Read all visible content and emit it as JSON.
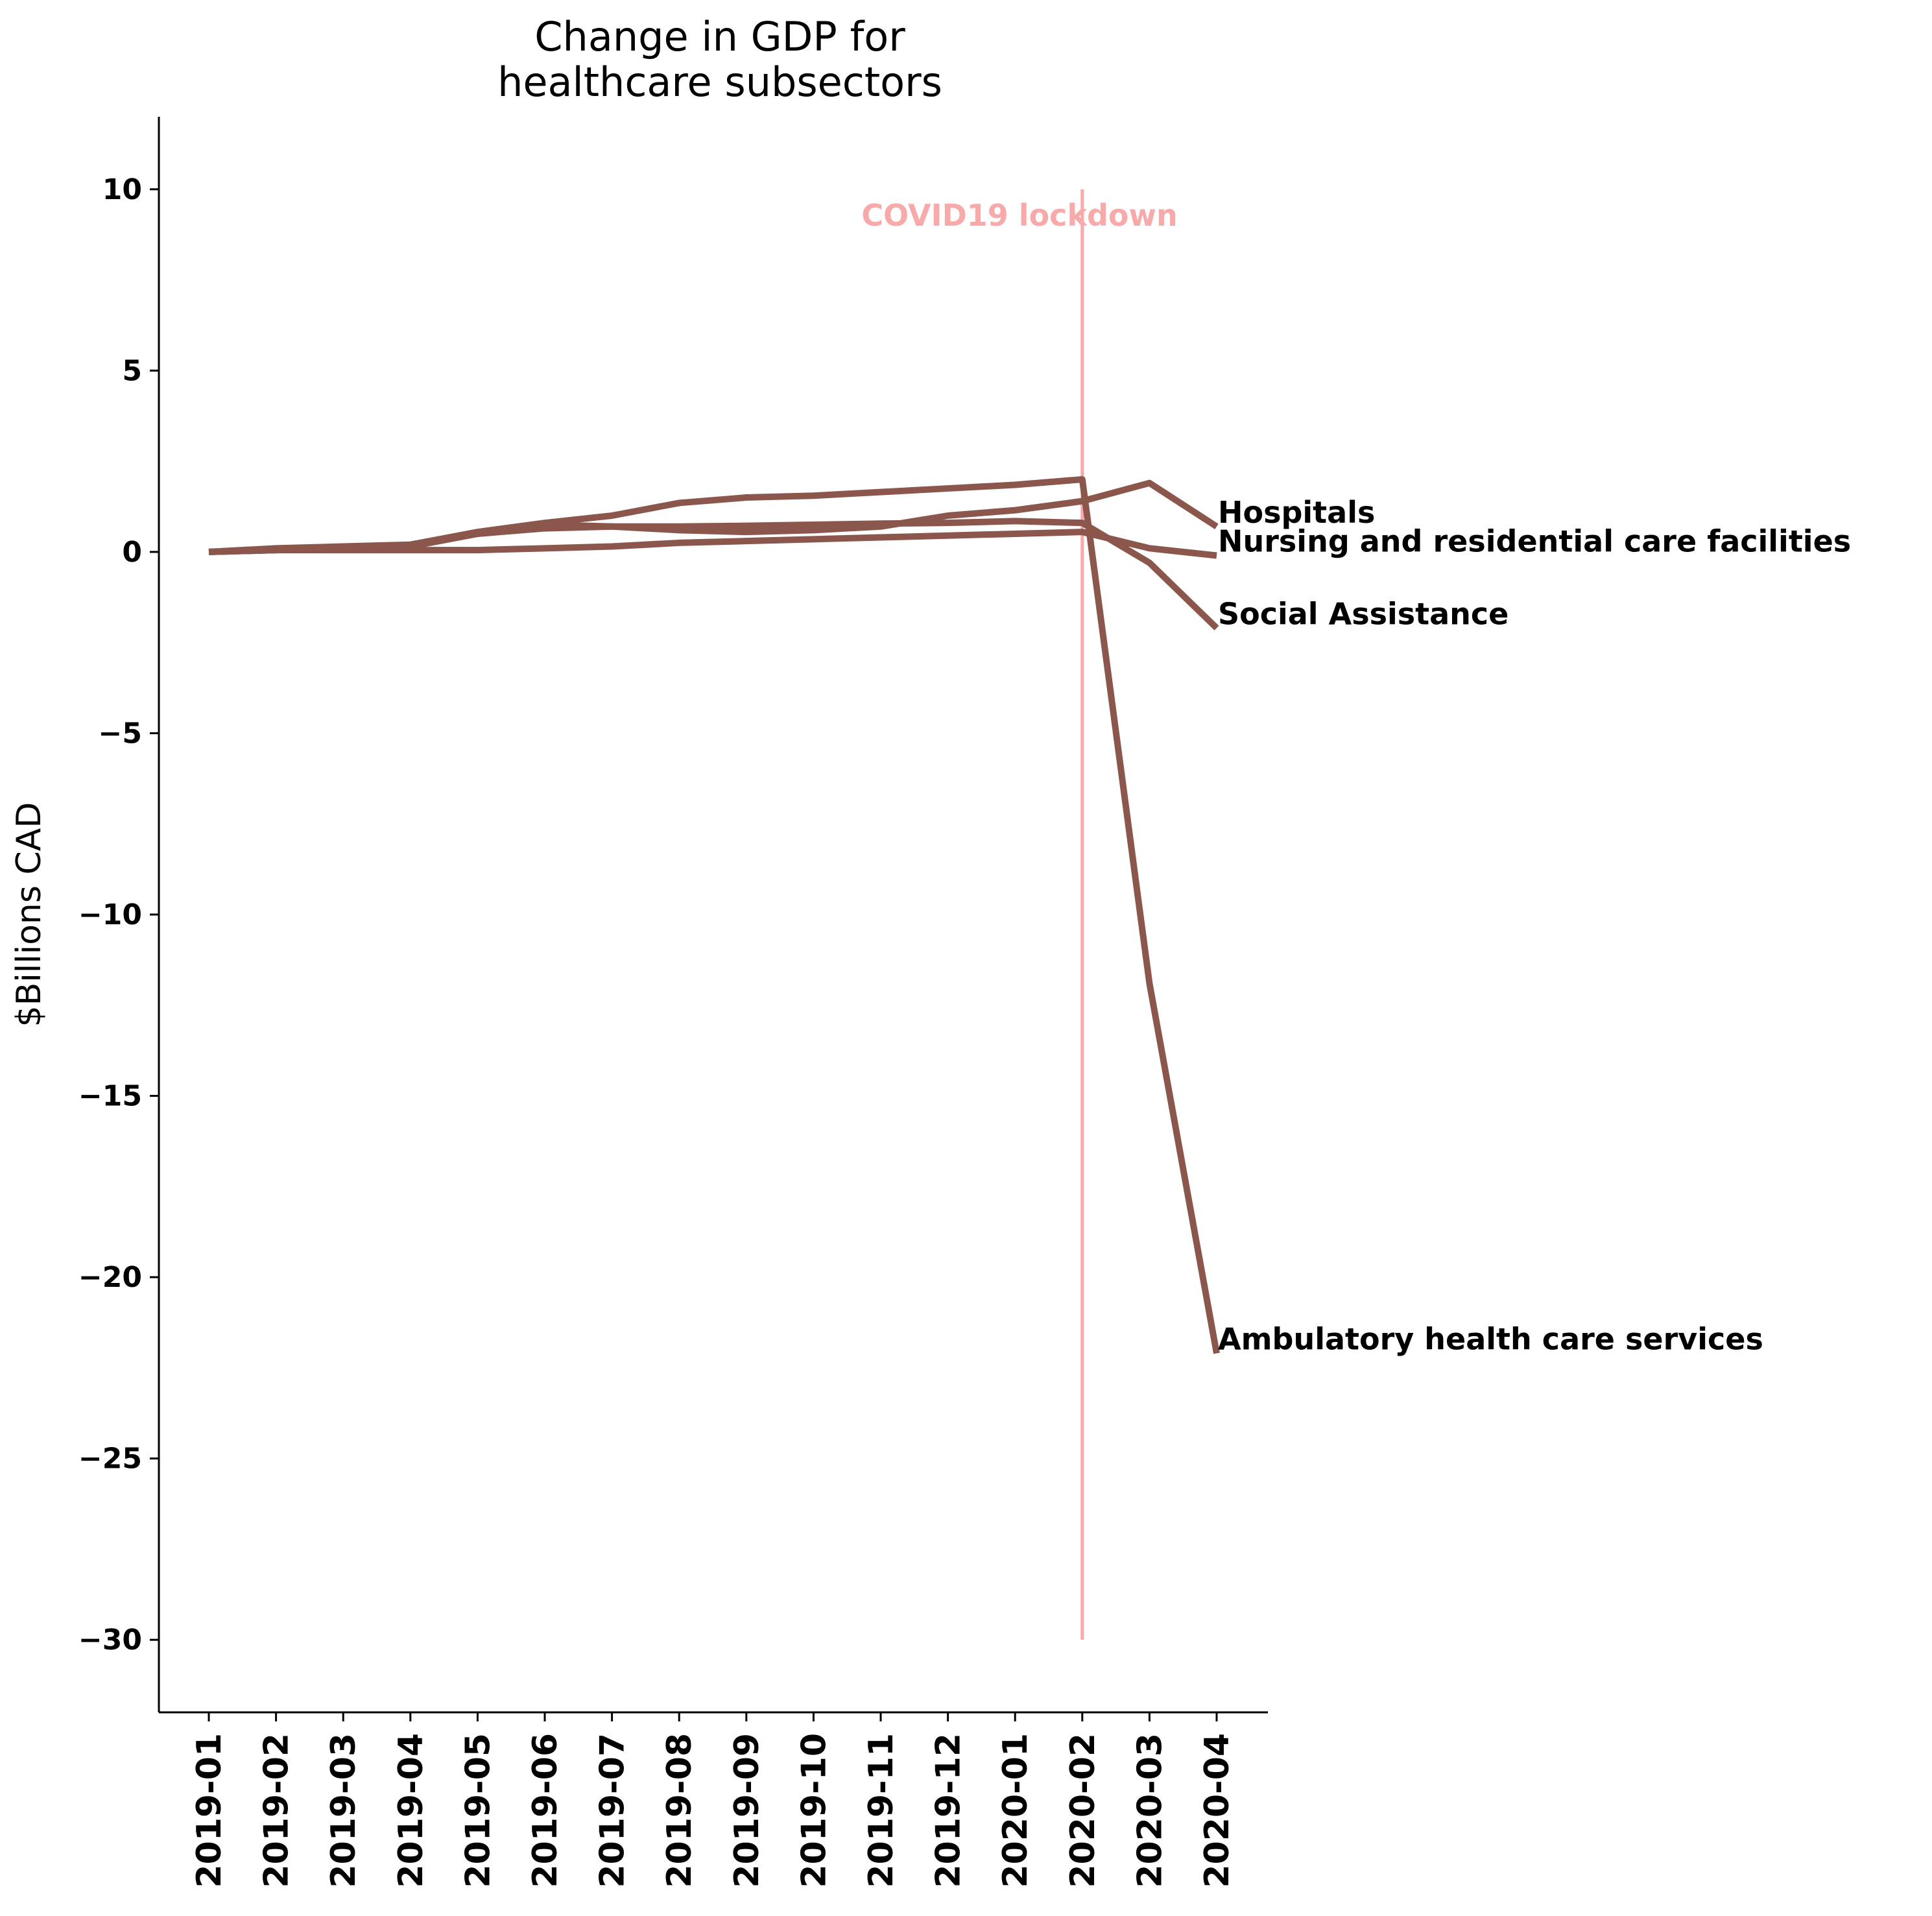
{
  "chart_data": {
    "type": "line",
    "title": "Change in GDP for\nhealthcare subsectors",
    "xlabel": "",
    "ylabel": "$Billions CAD",
    "categories": [
      "2019-01",
      "2019-02",
      "2019-03",
      "2019-04",
      "2019-05",
      "2019-06",
      "2019-07",
      "2019-08",
      "2019-09",
      "2019-10",
      "2019-11",
      "2019-12",
      "2020-01",
      "2020-02",
      "2020-03",
      "2020-04"
    ],
    "ylim": [
      -32,
      12
    ],
    "yticks": [
      10,
      5,
      0,
      -5,
      -10,
      -15,
      -20,
      -25,
      -30
    ],
    "ytick_labels": [
      "10",
      "5",
      "0",
      "−5",
      "−10",
      "−15",
      "−20",
      "−25",
      "−30"
    ],
    "grid": false,
    "line_color": "#8b564b",
    "series": [
      {
        "name": "Hospitals",
        "values": [
          0,
          0.05,
          0.1,
          0.15,
          0.5,
          0.75,
          0.7,
          0.6,
          0.55,
          0.6,
          0.7,
          1.0,
          1.15,
          1.4,
          1.9,
          0.7
        ]
      },
      {
        "name": "Nursing and residential care facilities",
        "values": [
          0,
          0.05,
          0.05,
          0.05,
          0.05,
          0.1,
          0.15,
          0.25,
          0.3,
          0.35,
          0.4,
          0.45,
          0.5,
          0.55,
          0.1,
          -0.1
        ]
      },
      {
        "name": "Social Assistance",
        "values": [
          0,
          0.1,
          0.15,
          0.2,
          0.5,
          0.65,
          0.7,
          0.7,
          0.72,
          0.75,
          0.78,
          0.8,
          0.85,
          0.8,
          -0.3,
          -2.1
        ]
      },
      {
        "name": "Ambulatory health care services",
        "values": [
          0,
          0.05,
          0.1,
          0.2,
          0.55,
          0.8,
          1.0,
          1.35,
          1.5,
          1.55,
          1.65,
          1.75,
          1.85,
          2.0,
          -11.9,
          -22.1
        ]
      }
    ],
    "annotations": [
      {
        "text": "COVID19 lockdown",
        "x": "2020-02",
        "y_range": [
          -30,
          10
        ],
        "color": "#f8a9a9"
      }
    ]
  }
}
